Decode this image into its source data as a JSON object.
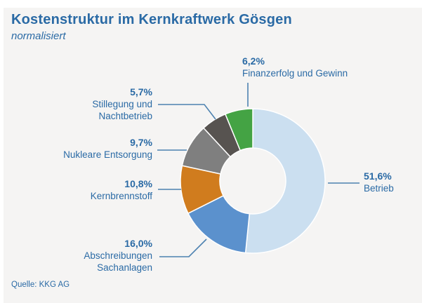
{
  "chart_data": {
    "type": "pie",
    "variant": "donut",
    "title": "Kostenstruktur im Kernkraftwerk Gösgen",
    "subtitle": "normalisiert",
    "source": "Quelle: KKG AG",
    "unit": "%",
    "start_angle_deg": 0,
    "direction": "clockwise",
    "legend_position": "callouts",
    "segments": [
      {
        "label": "Betrieb",
        "display_label": "Betrieb",
        "value": 51.6,
        "pct_label": "51,6%",
        "color": "#cbdff0"
      },
      {
        "label": "Abschreibungen Sachanlagen",
        "display_label": "Abschreibungen\nSachanlagen",
        "value": 16.0,
        "pct_label": "16,0%",
        "color": "#5b91cd"
      },
      {
        "label": "Kernbrennstoff",
        "display_label": "Kernbrennstoff",
        "value": 10.8,
        "pct_label": "10,8%",
        "color": "#d07c1e"
      },
      {
        "label": "Nukleare Entsorgung",
        "display_label": "Nukleare Entsorgung",
        "value": 9.7,
        "pct_label": "9,7%",
        "color": "#7f7f7f"
      },
      {
        "label": "Stillegung und Nachtbetrieb",
        "display_label": "Stillegung und\nNachtbetrieb",
        "value": 5.7,
        "pct_label": "5,7%",
        "color": "#575350"
      },
      {
        "label": "Finanzerfolg und Gewinn",
        "display_label": "Finanzerfolg und Gewinn",
        "value": 6.2,
        "pct_label": "6,2%",
        "color": "#44a344"
      }
    ],
    "colors": {
      "panel_background": "#f5f4f3",
      "accent_text": "#2a6aa5",
      "leader_line": "#4d82b0",
      "segment_separator": "#ffffff"
    }
  }
}
